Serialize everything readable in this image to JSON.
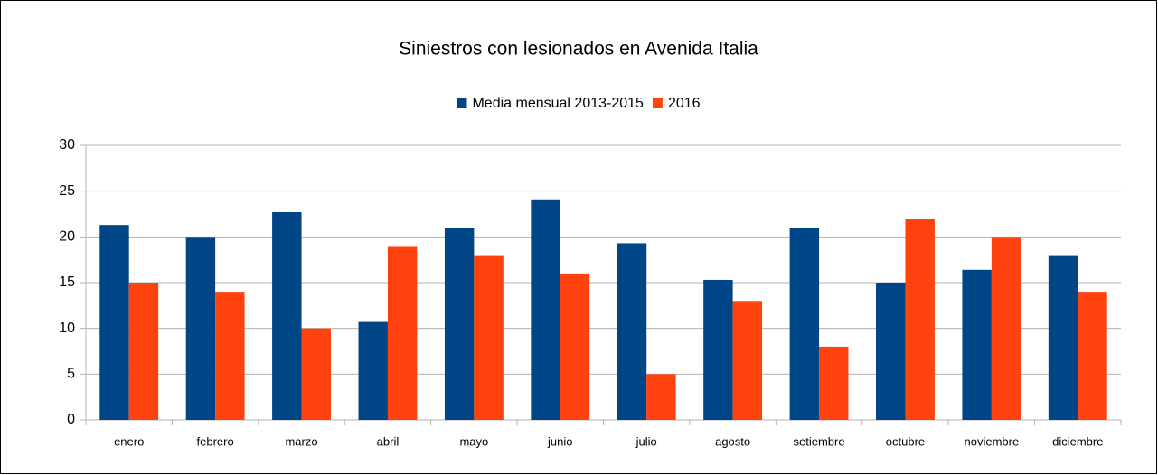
{
  "chart_data": {
    "type": "bar",
    "title": "Siniestros con lesionados en Avenida Italia",
    "categories": [
      "enero",
      "febrero",
      "marzo",
      "abril",
      "mayo",
      "junio",
      "julio",
      "agosto",
      "setiembre",
      "octubre",
      "noviembre",
      "diciembre"
    ],
    "series": [
      {
        "name": "Media mensual 2013-2015",
        "color": "#004586",
        "values": [
          21.3,
          20.0,
          22.7,
          10.7,
          21.0,
          24.1,
          19.3,
          15.3,
          21.0,
          15.0,
          16.4,
          18.0
        ]
      },
      {
        "name": "2016",
        "color": "#ff420e",
        "values": [
          15,
          14,
          10,
          19,
          18,
          16,
          5,
          13,
          8,
          22,
          20,
          14
        ]
      }
    ],
    "ylim": [
      0,
      30
    ],
    "yticks": [
      0,
      5,
      10,
      15,
      20,
      25,
      30
    ],
    "grid": true,
    "legend": "top"
  }
}
